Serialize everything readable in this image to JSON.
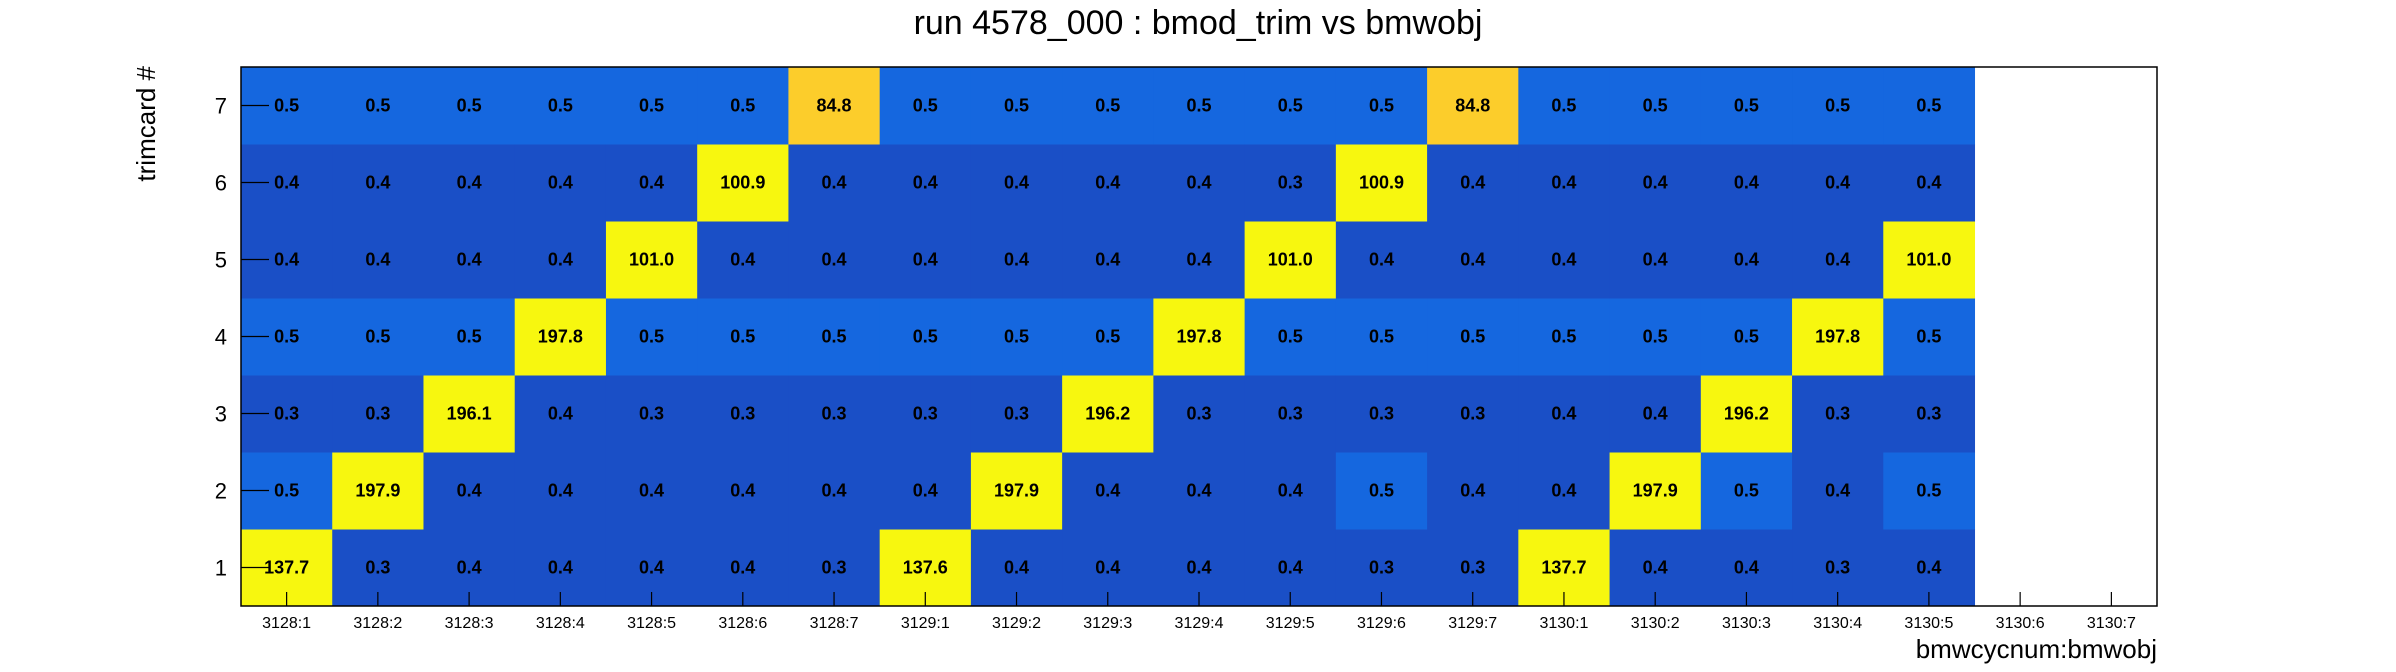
{
  "chart_data": {
    "type": "heatmap",
    "title": "run 4578_000 : bmod_trim vs bmwobj",
    "xlabel": "bmwcycnum:bmwobj",
    "ylabel": "trimcard #",
    "x_categories": [
      "3128:1",
      "3128:2",
      "3128:3",
      "3128:4",
      "3128:5",
      "3128:6",
      "3128:7",
      "3129:1",
      "3129:2",
      "3129:3",
      "3129:4",
      "3129:5",
      "3129:6",
      "3129:7",
      "3130:1",
      "3130:2",
      "3130:3",
      "3130:4",
      "3130:5",
      "3130:6",
      "3130:7"
    ],
    "y_categories": [
      "1",
      "2",
      "3",
      "4",
      "5",
      "6",
      "7"
    ],
    "values": [
      [
        137.7,
        0.3,
        0.4,
        0.4,
        0.4,
        0.4,
        0.3,
        137.6,
        0.4,
        0.4,
        0.4,
        0.4,
        0.3,
        0.3,
        137.7,
        0.4,
        0.4,
        0.3,
        0.4,
        null,
        null
      ],
      [
        0.5,
        197.9,
        0.4,
        0.4,
        0.4,
        0.4,
        0.4,
        0.4,
        197.9,
        0.4,
        0.4,
        0.4,
        0.5,
        0.4,
        0.4,
        197.9,
        0.5,
        0.4,
        0.5,
        null,
        null
      ],
      [
        0.3,
        0.3,
        196.1,
        0.4,
        0.3,
        0.3,
        0.3,
        0.3,
        0.3,
        196.2,
        0.3,
        0.3,
        0.3,
        0.3,
        0.4,
        0.4,
        196.2,
        0.3,
        0.3,
        null,
        null
      ],
      [
        0.5,
        0.5,
        0.5,
        197.8,
        0.5,
        0.5,
        0.5,
        0.5,
        0.5,
        0.5,
        197.8,
        0.5,
        0.5,
        0.5,
        0.5,
        0.5,
        0.5,
        197.8,
        0.5,
        null,
        null
      ],
      [
        0.4,
        0.4,
        0.4,
        0.4,
        101.0,
        0.4,
        0.4,
        0.4,
        0.4,
        0.4,
        0.4,
        101.0,
        0.4,
        0.4,
        0.4,
        0.4,
        0.4,
        0.4,
        101.0,
        null,
        null
      ],
      [
        0.4,
        0.4,
        0.4,
        0.4,
        0.4,
        100.9,
        0.4,
        0.4,
        0.4,
        0.4,
        0.4,
        0.3,
        100.9,
        0.4,
        0.4,
        0.4,
        0.4,
        0.4,
        0.4,
        null,
        null
      ],
      [
        0.5,
        0.5,
        0.5,
        0.5,
        0.5,
        0.5,
        84.8,
        0.5,
        0.5,
        0.5,
        0.5,
        0.5,
        0.5,
        84.8,
        0.5,
        0.5,
        0.5,
        0.5,
        0.5,
        null,
        null
      ]
    ],
    "colors": {
      "low_dark": "#1a4fc6",
      "low_light": "#1567df",
      "high": "#f7f70f",
      "mid": "#fccd2b"
    },
    "grid": false,
    "legend": "none"
  }
}
